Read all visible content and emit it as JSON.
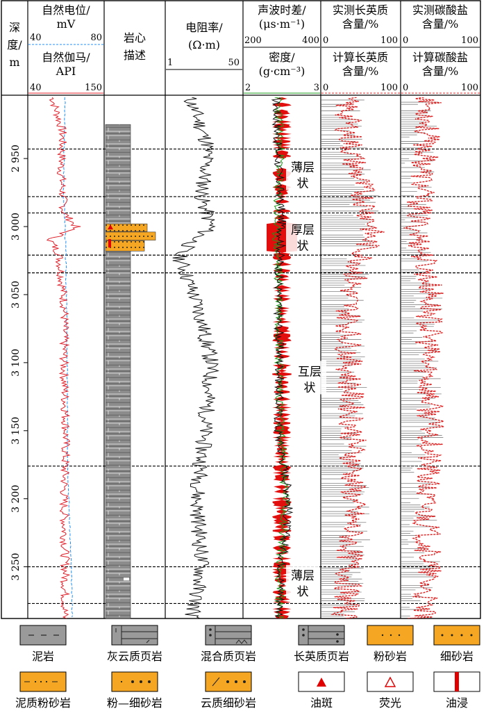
{
  "headers": {
    "depth": [
      "深",
      "度/",
      "m"
    ],
    "sp_title": [
      "自然电位/",
      "mV"
    ],
    "sp_range": [
      "40",
      "80"
    ],
    "gr_title": [
      "自然伽马/",
      "API"
    ],
    "gr_range": [
      "40",
      "150"
    ],
    "core": [
      "岩心",
      "描述"
    ],
    "rt_title": [
      "电阻率/",
      "(Ω·m)"
    ],
    "rt_range": [
      "1",
      "50"
    ],
    "ac_title": [
      "声波时差/",
      "(μs·m⁻¹)"
    ],
    "ac_range": [
      "200",
      "400"
    ],
    "den_title": [
      "密度/",
      "(g·cm⁻³)"
    ],
    "den_range": [
      "2",
      "3"
    ],
    "fel_meas": [
      "实测长英质",
      "含量/%"
    ],
    "fel_meas_range": [
      "0",
      "100"
    ],
    "fel_calc": [
      "计算长英质",
      "含量/%"
    ],
    "fel_calc_range": [
      "0",
      "100"
    ],
    "carb_meas": [
      "实测碳酸盐",
      "含量/%"
    ],
    "carb_meas_range": [
      "0",
      "100"
    ],
    "carb_calc": [
      "计算碳酸盐",
      "含量/%"
    ],
    "carb_calc_range": [
      "0",
      "100"
    ]
  },
  "annotations": [
    {
      "text": [
        "薄层",
        "状"
      ],
      "depth_center": 2962
    },
    {
      "text": [
        "厚层",
        "状"
      ],
      "depth_center": 3008
    },
    {
      "text": [
        "互层",
        "状"
      ],
      "depth_center": 3112
    },
    {
      "text": [
        "薄层",
        "状"
      ],
      "depth_center": 3262
    }
  ],
  "legend": [
    {
      "label": "泥岩",
      "pattern": "mudstone"
    },
    {
      "label": "灰云质页岩",
      "pattern": "lime-dolomitic-shale"
    },
    {
      "label": "混合质页岩",
      "pattern": "mixed-shale"
    },
    {
      "label": "长英质页岩",
      "pattern": "felsic-shale"
    },
    {
      "label": "粉砂岩",
      "pattern": "siltstone"
    },
    {
      "label": "细砂岩",
      "pattern": "fine-sandstone"
    },
    {
      "label": "泥质粉砂岩",
      "pattern": "argillaceous-siltstone"
    },
    {
      "label": "粉—细砂岩",
      "pattern": "silty-fine-sandstone"
    },
    {
      "label": "云质细砂岩",
      "pattern": "dolomitic-fine-sandstone"
    },
    {
      "label": "油斑",
      "pattern": "oil-spot"
    },
    {
      "label": "荧光",
      "pattern": "fluorescence"
    },
    {
      "label": "油浸",
      "pattern": "oil-immersion"
    }
  ],
  "colors": {
    "sp": "#1e90ff",
    "gr": "#e0202a",
    "resistivity": "#111111",
    "acoustic": "#111111",
    "density": "#1a9a1a",
    "oil_fill": "#e00000",
    "measured": "#808080",
    "calculated": "#e02020",
    "sand": "#f5a623",
    "shale": "#9a9a9a"
  },
  "chart_data": {
    "type": "line",
    "ylabel": "深度/m",
    "ylim": [
      2905,
      3288
    ],
    "yticks": [
      2950,
      3000,
      3050,
      3100,
      3150,
      3200,
      3250
    ],
    "ytick_labels": [
      "2 950",
      "3 000",
      "3 050",
      "3 100",
      "3 150",
      "3 200",
      "3 250"
    ],
    "zone_boundaries": [
      2943,
      2978,
      2990,
      3021,
      3034,
      3176,
      3250,
      3277
    ],
    "sand_interval": [
      2998,
      3018
    ],
    "core_interval": [
      2925,
      3288
    ],
    "series": [
      {
        "name": "自然电位",
        "unit": "mV",
        "xlim": [
          40,
          80
        ],
        "depths": [
          2905,
          2940,
          2980,
          3000,
          3050,
          3100,
          3150,
          3200,
          3240,
          3288
        ],
        "values": [
          59.5,
          59,
          58.8,
          59.6,
          60.2,
          60.6,
          60.8,
          61.5,
          62.5,
          63.5
        ]
      },
      {
        "name": "自然伽马",
        "unit": "API",
        "xlim": [
          40,
          150
        ],
        "depths": [
          2905,
          2930,
          2960,
          2990,
          3000,
          3010,
          3020,
          3060,
          3100,
          3150,
          3200,
          3250,
          3288
        ],
        "values": [
          75,
          90,
          88,
          92,
          110,
          72,
          85,
          93,
          92,
          95,
          92,
          94,
          93
        ]
      },
      {
        "name": "电阻率",
        "unit": "Ω·m",
        "xlim": [
          1,
          50
        ],
        "depths": [
          2905,
          2940,
          2980,
          3000,
          3020,
          3060,
          3100,
          3150,
          3200,
          3250,
          3288
        ],
        "values": [
          16,
          28,
          24,
          30,
          9,
          22,
          30,
          26,
          21,
          24,
          18
        ]
      },
      {
        "name": "声波时差",
        "unit": "μs·m⁻¹",
        "xlim": [
          200,
          400
        ],
        "depths": [
          2905,
          2950,
          3000,
          3050,
          3100,
          3150,
          3200,
          3250,
          3288
        ],
        "values": [
          285,
          290,
          300,
          290,
          295,
          290,
          320,
          300,
          295
        ]
      },
      {
        "name": "密度",
        "unit": "g·cm⁻³",
        "xlim": [
          2,
          3
        ],
        "depths": [
          2905,
          2950,
          3000,
          3050,
          3100,
          3150,
          3200,
          3250,
          3288
        ],
        "values": [
          2.45,
          2.48,
          2.42,
          2.47,
          2.47,
          2.48,
          2.55,
          2.48,
          2.47
        ]
      },
      {
        "name": "实测长英质含量",
        "unit": "%",
        "xlim": [
          0,
          100
        ],
        "depths": [
          2905,
          2950,
          3000,
          3050,
          3100,
          3150,
          3200,
          3250,
          3288
        ],
        "values": [
          35,
          45,
          60,
          38,
          38,
          40,
          45,
          40,
          35
        ]
      },
      {
        "name": "计算长英质含量",
        "unit": "%",
        "xlim": [
          0,
          100
        ],
        "depths": [
          2905,
          2950,
          3000,
          3010,
          3050,
          3100,
          3150,
          3200,
          3250,
          3288
        ],
        "values": [
          30,
          40,
          65,
          60,
          35,
          35,
          40,
          40,
          35,
          30
        ]
      },
      {
        "name": "实测碳酸盐含量",
        "unit": "%",
        "xlim": [
          0,
          100
        ],
        "depths": [
          2905,
          2950,
          3000,
          3050,
          3100,
          3150,
          3200,
          3250,
          3288
        ],
        "values": [
          30,
          25,
          18,
          35,
          30,
          35,
          25,
          30,
          20
        ]
      },
      {
        "name": "计算碳酸盐含量",
        "unit": "%",
        "xlim": [
          0,
          100
        ],
        "depths": [
          2905,
          2950,
          3000,
          3050,
          3100,
          3150,
          3200,
          3250,
          3288
        ],
        "values": [
          35,
          30,
          20,
          38,
          32,
          38,
          30,
          35,
          25
        ]
      }
    ]
  }
}
